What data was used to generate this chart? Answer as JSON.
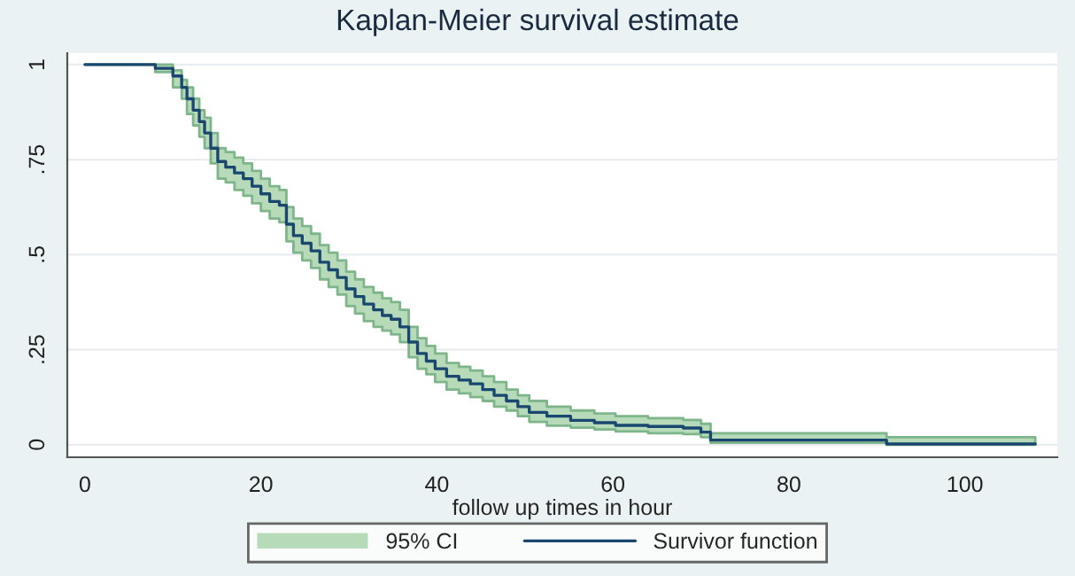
{
  "chart_data": {
    "type": "step",
    "title": "Kaplan-Meier survival estimate",
    "xlabel": "follow up times in hour",
    "annotations": [
      "95% CI"
    ],
    "x": [
      0,
      8,
      10,
      11,
      11.6,
      12.3,
      13,
      13.6,
      14.3,
      15.1,
      16,
      17,
      18,
      19,
      20,
      21,
      22.1,
      22.9,
      23.7,
      24.7,
      25.7,
      26.7,
      27.7,
      28.7,
      29.7,
      30.7,
      31.7,
      32.8,
      33.8,
      34.8,
      35.8,
      36.8,
      37.8,
      38.8,
      39.8,
      41.1,
      42.5,
      43.8,
      45.2,
      46.5,
      47.9,
      49.2,
      50.5,
      52.5,
      55.2,
      57.9,
      60.3,
      64,
      68,
      70,
      71.1,
      91.1,
      108
    ],
    "series": [
      {
        "name": "Survivor function",
        "color": "#1a476f",
        "values": [
          1,
          0.99,
          0.97,
          0.94,
          0.91,
          0.88,
          0.85,
          0.82,
          0.78,
          0.745,
          0.73,
          0.715,
          0.7,
          0.68,
          0.66,
          0.64,
          0.63,
          0.58,
          0.55,
          0.53,
          0.51,
          0.48,
          0.46,
          0.44,
          0.41,
          0.39,
          0.37,
          0.355,
          0.34,
          0.33,
          0.31,
          0.27,
          0.24,
          0.22,
          0.2,
          0.18,
          0.17,
          0.16,
          0.145,
          0.13,
          0.115,
          0.1,
          0.085,
          0.075,
          0.064,
          0.058,
          0.051,
          0.048,
          0.044,
          0.033,
          0.012,
          0.002,
          0.002
        ],
        "lower": [
          1,
          0.98,
          0.94,
          0.91,
          0.87,
          0.84,
          0.81,
          0.78,
          0.74,
          0.7,
          0.69,
          0.67,
          0.655,
          0.635,
          0.615,
          0.595,
          0.585,
          0.535,
          0.505,
          0.485,
          0.465,
          0.435,
          0.415,
          0.395,
          0.365,
          0.345,
          0.325,
          0.31,
          0.3,
          0.29,
          0.27,
          0.23,
          0.2,
          0.185,
          0.165,
          0.145,
          0.135,
          0.125,
          0.115,
          0.1,
          0.09,
          0.075,
          0.06,
          0.05,
          0.045,
          0.04,
          0.035,
          0.03,
          0.028,
          0.02,
          0.005,
          0,
          0
        ],
        "upper": [
          1,
          1,
          0.985,
          0.96,
          0.94,
          0.91,
          0.88,
          0.86,
          0.82,
          0.78,
          0.77,
          0.755,
          0.74,
          0.72,
          0.7,
          0.68,
          0.67,
          0.625,
          0.595,
          0.575,
          0.555,
          0.525,
          0.505,
          0.485,
          0.455,
          0.435,
          0.415,
          0.4,
          0.385,
          0.375,
          0.355,
          0.31,
          0.28,
          0.26,
          0.24,
          0.215,
          0.205,
          0.195,
          0.18,
          0.165,
          0.145,
          0.13,
          0.115,
          0.1,
          0.09,
          0.082,
          0.075,
          0.07,
          0.065,
          0.055,
          0.03,
          0.02,
          0.02
        ]
      }
    ],
    "xlim": [
      -2,
      110.5
    ],
    "xticks": [
      0,
      20,
      40,
      60,
      80,
      100
    ],
    "ylim": [
      -0.033,
      1.03
    ],
    "yticks": [
      {
        "value": 0,
        "label": "0"
      },
      {
        "value": 0.25,
        "label": ".25"
      },
      {
        "value": 0.5,
        "label": ".5"
      },
      {
        "value": 0.75,
        "label": ".75"
      },
      {
        "value": 1,
        "label": "1"
      }
    ],
    "grid": "y",
    "legend": "bottom"
  }
}
